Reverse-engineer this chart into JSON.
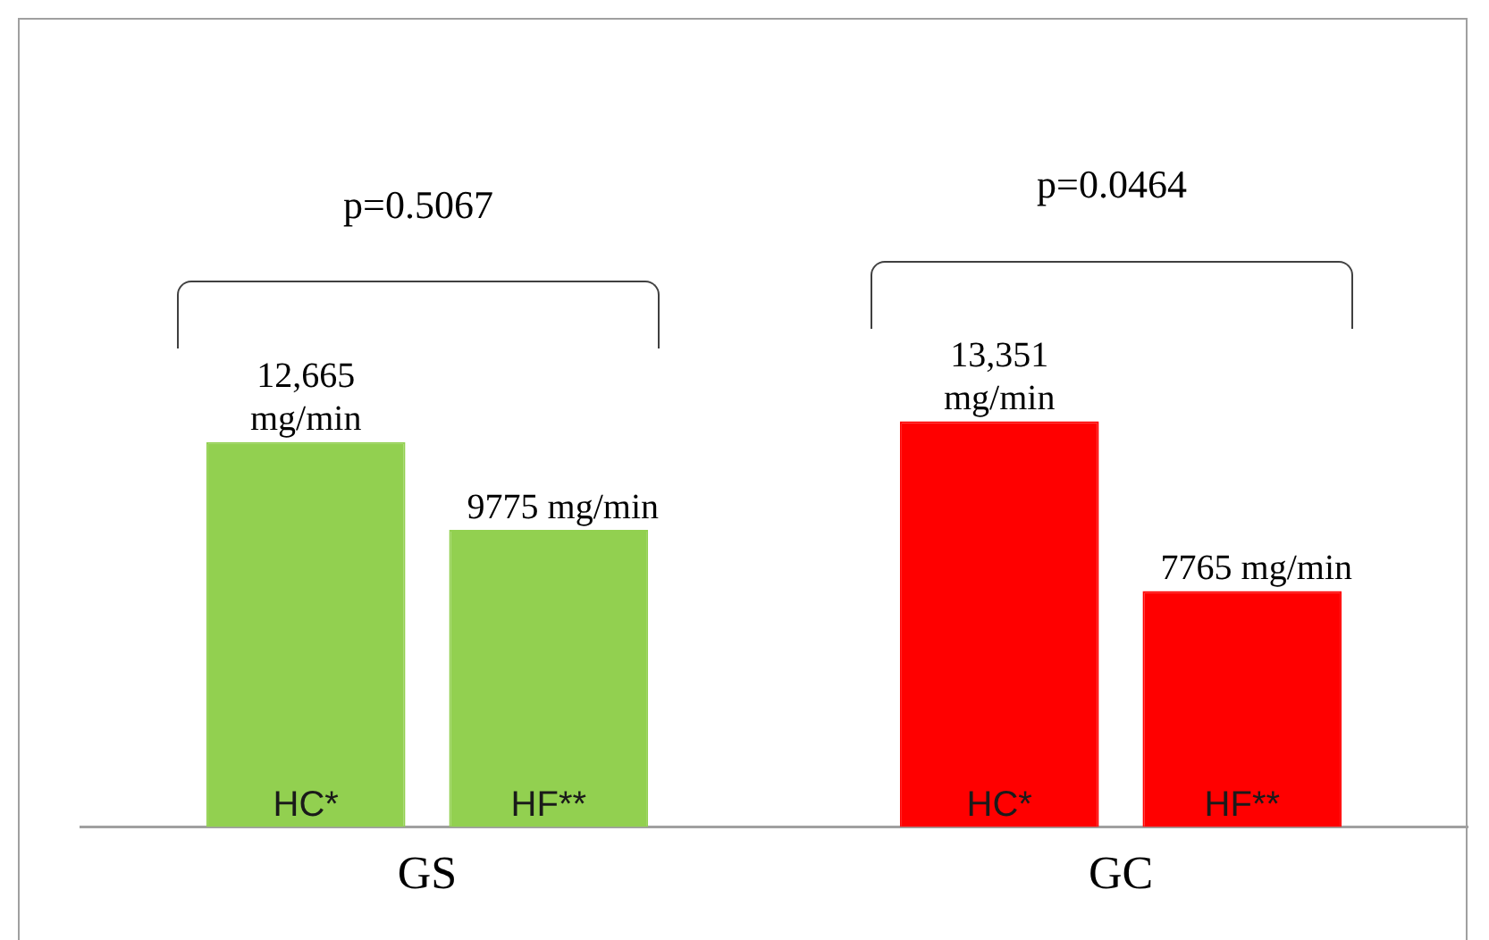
{
  "chart_data": {
    "type": "bar",
    "categories": [
      "GS",
      "GC"
    ],
    "series": [
      {
        "name": "HC*",
        "colors": [
          "#92d050",
          "#ff0000"
        ],
        "values": [
          12665,
          13351
        ],
        "value_labels": [
          "12,665 mg/min",
          "13,351 mg/min"
        ]
      },
      {
        "name": "HF**",
        "colors": [
          "#92d050",
          "#ff0000"
        ],
        "values": [
          9775,
          7765
        ],
        "value_labels": [
          "9775 mg/min",
          "7765 mg/min"
        ]
      }
    ],
    "annotations": [
      "p=0.5067",
      "p=0.0464"
    ],
    "legend": false,
    "grid": false,
    "tick_labels": "x"
  }
}
